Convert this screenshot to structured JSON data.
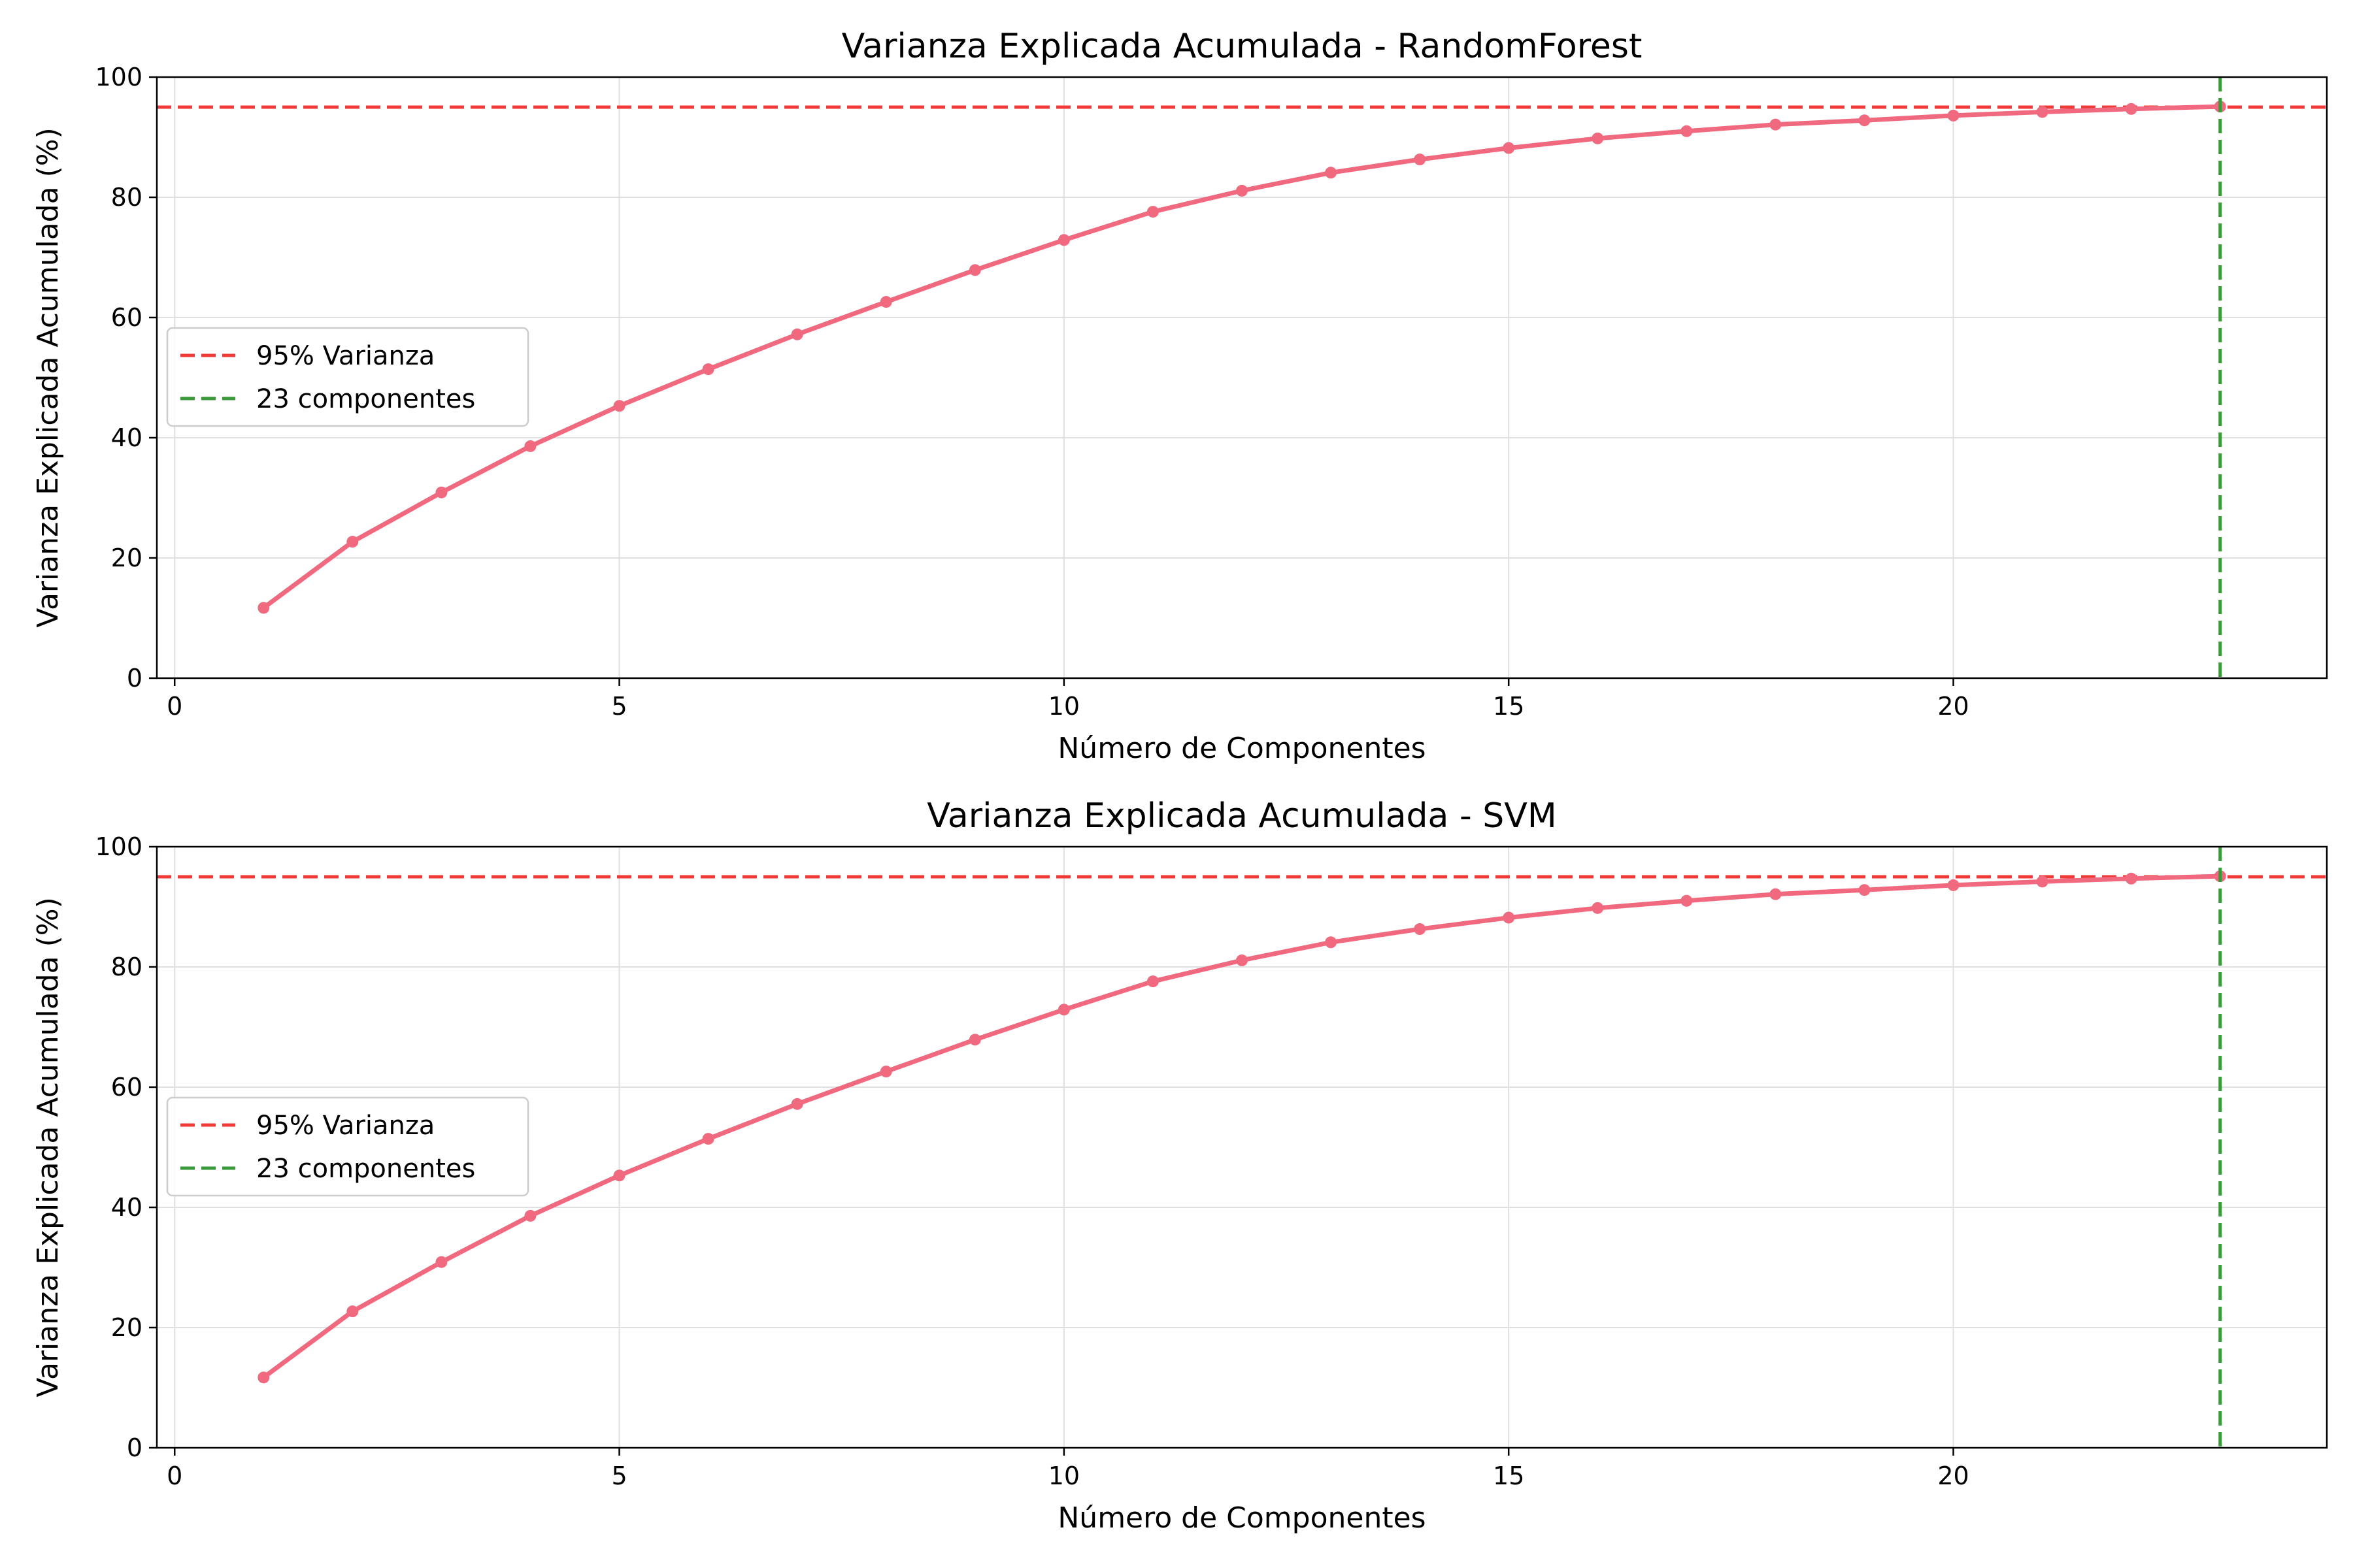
{
  "colors": {
    "series": "#f0697f",
    "threshold": "#f03a3a",
    "components": "#3a9a3a",
    "grid": "#e0e0e0"
  },
  "chart_data": [
    {
      "type": "line",
      "title": "Varianza Explicada Acumulada - RandomForest",
      "xlabel": "Número de Componentes",
      "ylabel": "Varianza Explicada Acumulada (%)",
      "xlim": [
        -0.2,
        24.2
      ],
      "ylim": [
        0,
        100
      ],
      "xticks": [
        0,
        5,
        10,
        15,
        20
      ],
      "xtick_labels": [
        "0",
        "5",
        "10",
        "15",
        "20"
      ],
      "yticks": [
        0,
        20,
        40,
        60,
        80,
        100
      ],
      "ytick_labels": [
        "0",
        "20",
        "40",
        "60",
        "80",
        "100"
      ],
      "grid": true,
      "legend_placement": "center-left",
      "x": [
        1,
        2,
        3,
        4,
        5,
        6,
        7,
        8,
        9,
        10,
        11,
        12,
        13,
        14,
        15,
        16,
        17,
        18,
        19,
        20,
        21,
        22,
        23
      ],
      "series": [
        {
          "values": [
            11.7,
            22.7,
            30.9,
            38.6,
            45.3,
            51.4,
            57.2,
            62.6,
            67.9,
            72.9,
            77.6,
            81.1,
            84.1,
            86.3,
            88.2,
            89.8,
            91.0,
            92.1,
            92.8,
            93.6,
            94.2,
            94.7,
            95.1
          ]
        }
      ],
      "hline": {
        "y": 95,
        "label": "95% Varianza"
      },
      "vline": {
        "x": 23,
        "label": "23 componentes"
      }
    },
    {
      "type": "line",
      "title": "Varianza Explicada Acumulada - SVM",
      "xlabel": "Número de Componentes",
      "ylabel": "Varianza Explicada Acumulada (%)",
      "xlim": [
        -0.2,
        24.2
      ],
      "ylim": [
        0,
        100
      ],
      "xticks": [
        0,
        5,
        10,
        15,
        20
      ],
      "xtick_labels": [
        "0",
        "5",
        "10",
        "15",
        "20"
      ],
      "yticks": [
        0,
        20,
        40,
        60,
        80,
        100
      ],
      "ytick_labels": [
        "0",
        "20",
        "40",
        "60",
        "80",
        "100"
      ],
      "grid": true,
      "legend_placement": "center-left",
      "x": [
        1,
        2,
        3,
        4,
        5,
        6,
        7,
        8,
        9,
        10,
        11,
        12,
        13,
        14,
        15,
        16,
        17,
        18,
        19,
        20,
        21,
        22,
        23
      ],
      "series": [
        {
          "values": [
            11.7,
            22.7,
            30.9,
            38.6,
            45.3,
            51.4,
            57.2,
            62.6,
            67.9,
            72.9,
            77.6,
            81.1,
            84.1,
            86.3,
            88.2,
            89.8,
            91.0,
            92.1,
            92.8,
            93.6,
            94.2,
            94.7,
            95.1
          ]
        }
      ],
      "hline": {
        "y": 95,
        "label": "95% Varianza"
      },
      "vline": {
        "x": 23,
        "label": "23 componentes"
      }
    }
  ]
}
